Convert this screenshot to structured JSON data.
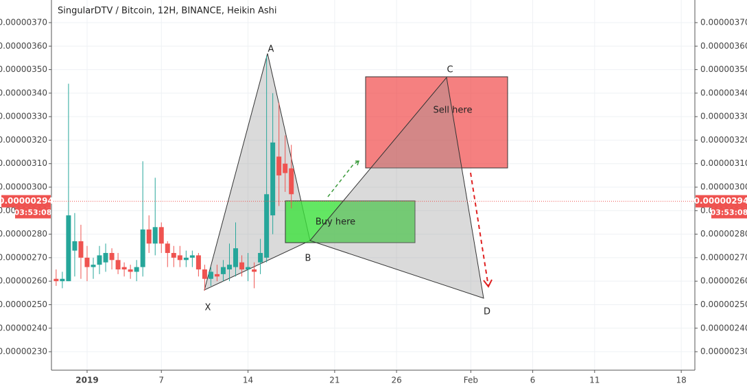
{
  "chart_data": {
    "type": "candlestick",
    "title": "SingularDTV / Bitcoin, 12H, BINANCE, Heikin Ashi",
    "up_color": "#26a69a",
    "down_color": "#ef5350",
    "grid": true,
    "x": [
      -2.5,
      -2,
      -1.5,
      -1,
      -0.5,
      0,
      0.5,
      1,
      1.5,
      2,
      2.5,
      3,
      3.5,
      4,
      4.5,
      5,
      5.5,
      6,
      6.5,
      7,
      7.5,
      8,
      8.5,
      9,
      9.5,
      10,
      10.5,
      11,
      11.5,
      12,
      12.5,
      13,
      13.5,
      14,
      14.5,
      15,
      15.5,
      16,
      16.5
    ],
    "open": [
      2.61e-06,
      2.6e-06,
      2.6e-06,
      2.73e-06,
      2.77e-06,
      2.7e-06,
      2.66e-06,
      2.67e-06,
      2.68e-06,
      2.72e-06,
      2.69e-06,
      2.66e-06,
      2.65e-06,
      2.64e-06,
      2.66e-06,
      2.82e-06,
      2.76e-06,
      2.83e-06,
      2.76e-06,
      2.72e-06,
      2.71e-06,
      2.69e-06,
      2.7e-06,
      2.71e-06,
      2.65e-06,
      2.61e-06,
      2.63e-06,
      2.63e-06,
      2.65e-06,
      2.66e-06,
      2.68e-06,
      2.65e-06,
      2.65e-06,
      2.68e-06,
      2.7e-06,
      2.88e-06,
      3.13e-06,
      3.1e-06,
      3.08e-06
    ],
    "high": [
      2.65e-06,
      2.64e-06,
      3.44e-06,
      2.89e-06,
      2.84e-06,
      2.75e-06,
      2.7e-06,
      2.75e-06,
      2.76e-06,
      2.74e-06,
      2.72e-06,
      2.68e-06,
      2.67e-06,
      2.69e-06,
      3.11e-06,
      2.88e-06,
      3.04e-06,
      2.85e-06,
      2.77e-06,
      2.75e-06,
      2.75e-06,
      2.73e-06,
      2.73e-06,
      2.72e-06,
      2.67e-06,
      2.66e-06,
      2.67e-06,
      2.69e-06,
      2.76e-06,
      2.85e-06,
      2.71e-06,
      2.72e-06,
      2.68e-06,
      2.78e-06,
      3.56e-06,
      3.4e-06,
      3.36e-06,
      3.22e-06,
      3.18e-06
    ],
    "low": [
      2.58e-06,
      2.57e-06,
      2.6e-06,
      2.62e-06,
      2.61e-06,
      2.6e-06,
      2.61e-06,
      2.63e-06,
      2.64e-06,
      2.65e-06,
      2.63e-06,
      2.62e-06,
      2.61e-06,
      2.6e-06,
      2.62e-06,
      2.72e-06,
      2.71e-06,
      2.72e-06,
      2.66e-06,
      2.66e-06,
      2.66e-06,
      2.66e-06,
      2.66e-06,
      2.62e-06,
      2.56e-06,
      2.58e-06,
      2.6e-06,
      2.6e-06,
      2.6e-06,
      2.62e-06,
      2.62e-06,
      2.6e-06,
      2.57e-06,
      2.63e-06,
      2.68e-06,
      2.8e-06,
      2.92e-06,
      2.98e-06,
      2.91e-06
    ],
    "close": [
      2.6e-06,
      2.61e-06,
      2.88e-06,
      2.77e-06,
      2.7e-06,
      2.66e-06,
      2.67e-06,
      2.71e-06,
      2.72e-06,
      2.69e-06,
      2.65e-06,
      2.65e-06,
      2.64e-06,
      2.66e-06,
      2.82e-06,
      2.76e-06,
      2.83e-06,
      2.76e-06,
      2.72e-06,
      2.7e-06,
      2.69e-06,
      2.7e-06,
      2.71e-06,
      2.65e-06,
      2.61e-06,
      2.64e-06,
      2.62e-06,
      2.66e-06,
      2.67e-06,
      2.74e-06,
      2.65e-06,
      2.66e-06,
      2.64e-06,
      2.72e-06,
      2.97e-06,
      3.19e-06,
      3.05e-06,
      3.06e-06,
      2.97e-06
    ],
    "xlim": [
      -2.88,
      49.1
    ],
    "xticks": [
      {
        "value": 0,
        "label": "2019"
      },
      {
        "value": 6,
        "label": "7"
      },
      {
        "value": 13,
        "label": "14"
      },
      {
        "value": 20,
        "label": "21"
      },
      {
        "value": 25,
        "label": "26"
      },
      {
        "value": 31,
        "label": "Feb"
      },
      {
        "value": 36,
        "label": "6"
      },
      {
        "value": 41,
        "label": "11"
      },
      {
        "value": 48,
        "label": "18"
      }
    ],
    "ylim": [
      2.2214e-06,
      3.7962e-06
    ],
    "yticks": [
      {
        "value": 3.7e-06,
        "label": "0.00000370"
      },
      {
        "value": 3.6e-06,
        "label": "0.00000360"
      },
      {
        "value": 3.5e-06,
        "label": "0.00000350"
      },
      {
        "value": 3.4e-06,
        "label": "0.00000340"
      },
      {
        "value": 3.3e-06,
        "label": "0.00000330"
      },
      {
        "value": 3.2e-06,
        "label": "0.00000320"
      },
      {
        "value": 3.1e-06,
        "label": "0.00000310"
      },
      {
        "value": 3e-06,
        "label": "0.00000300"
      },
      {
        "value": 2.9e-06,
        "label": "0.00000290"
      },
      {
        "value": 2.8e-06,
        "label": "0.00000280"
      },
      {
        "value": 2.7e-06,
        "label": "0.00000270"
      },
      {
        "value": 2.6e-06,
        "label": "0.00000260"
      },
      {
        "value": 2.5e-06,
        "label": "0.00000250"
      },
      {
        "value": 2.4e-06,
        "label": "0.00000240"
      },
      {
        "value": 2.3e-06,
        "label": "0.00000230"
      }
    ],
    "last_price": {
      "value": 2.94e-06,
      "label": "0.00000294"
    },
    "countdown": "03:53:08",
    "annotations": [
      "X",
      "A",
      "B",
      "C",
      "D",
      "Buy here",
      "Sell here"
    ]
  }
}
